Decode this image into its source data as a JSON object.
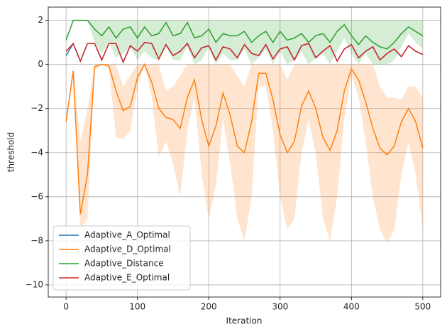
{
  "chart_data": {
    "type": "line",
    "x_label": "Iteration",
    "y_label": "threshold",
    "x": [
      0,
      10,
      20,
      30,
      40,
      50,
      60,
      70,
      80,
      90,
      100,
      110,
      120,
      130,
      140,
      150,
      160,
      170,
      180,
      190,
      200,
      210,
      220,
      230,
      240,
      250,
      260,
      270,
      280,
      290,
      300,
      310,
      320,
      330,
      340,
      350,
      360,
      370,
      380,
      390,
      400,
      410,
      420,
      430,
      440,
      450,
      460,
      470,
      480,
      490,
      500
    ],
    "xlim": [
      -25,
      525
    ],
    "ylim": [
      -10.55,
      2.6
    ],
    "xticks": [
      0,
      100,
      200,
      300,
      400,
      500
    ],
    "yticks": [
      {
        "value": -10,
        "label": "−10"
      },
      {
        "value": -8,
        "label": "−8"
      },
      {
        "value": -6,
        "label": "−6"
      },
      {
        "value": -4,
        "label": "−4"
      },
      {
        "value": -2,
        "label": "−2"
      },
      0,
      2
    ],
    "grid": true,
    "legend_position": "lower left",
    "series": [
      {
        "name": "Adaptive_A_Optimal",
        "color": "#1f77b4",
        "values": [
          0.4,
          0.95,
          0.15,
          0.95,
          0.95,
          0.2,
          0.95,
          0.95,
          0.1,
          0.85,
          0.6,
          1.0,
          0.95,
          0.25,
          0.9,
          0.4,
          0.6,
          0.95,
          0.3,
          0.75,
          0.85,
          0.2,
          0.8,
          0.7,
          0.3,
          0.9,
          0.5,
          0.4,
          0.9,
          0.25,
          0.7,
          0.8,
          0.2,
          0.85,
          0.95,
          0.3,
          0.6,
          0.85,
          0.15,
          0.7,
          0.9,
          0.3,
          0.6,
          0.8,
          0.2,
          0.5,
          0.7,
          0.35,
          0.85,
          0.6,
          0.45
        ]
      },
      {
        "name": "Adaptive_D_Optimal",
        "color": "#ff7f0e",
        "values": [
          -2.6,
          -0.3,
          -6.8,
          -5.0,
          -0.1,
          0,
          -0.05,
          -1.2,
          -2.1,
          -1.9,
          -0.6,
          0,
          -0.8,
          -2.0,
          -2.4,
          -2.5,
          -2.9,
          -1.5,
          -0.7,
          -2.5,
          -3.7,
          -2.8,
          -1.3,
          -2.3,
          -3.7,
          -4.0,
          -2.6,
          -0.4,
          -0.4,
          -1.6,
          -3.2,
          -4.0,
          -3.5,
          -1.9,
          -1.2,
          -2.0,
          -3.3,
          -3.9,
          -3.0,
          -1.2,
          -0.2,
          -0.7,
          -1.7,
          -2.9,
          -3.8,
          -4.1,
          -3.7,
          -2.6,
          -2.0,
          -2.6,
          -3.8
        ],
        "lower": [
          -2.6,
          -0.5,
          -7.5,
          -7.0,
          -0.3,
          0,
          -0.2,
          -3.3,
          -3.4,
          -3.0,
          -1.0,
          0,
          -1.5,
          -4.2,
          -3.5,
          -4.5,
          -6.0,
          -3.0,
          -1.5,
          -5.0,
          -7.0,
          -5.5,
          -2.5,
          -4.5,
          -7.0,
          -8.0,
          -6.0,
          -1.0,
          -1.0,
          -3.0,
          -6.0,
          -7.5,
          -7.0,
          -4.0,
          -2.5,
          -4.0,
          -7.0,
          -8.0,
          -6.0,
          -2.5,
          -0.5,
          -1.5,
          -3.5,
          -6.0,
          -7.5,
          -8.1,
          -7.5,
          -5.0,
          -3.5,
          -5.0,
          -7.5
        ],
        "upper": [
          -2.6,
          0,
          -3.5,
          -2.0,
          0,
          0,
          0,
          0,
          -1.0,
          -0.5,
          0,
          0,
          0,
          0,
          -1.2,
          -1.0,
          -0.5,
          0,
          0,
          0,
          0,
          0,
          0,
          0,
          -0.5,
          -1.0,
          0,
          0,
          0,
          0,
          0,
          -0.7,
          0,
          0,
          0,
          0,
          0,
          0,
          0,
          0,
          0,
          0,
          0,
          0,
          -1.0,
          -1.5,
          -1.5,
          -1.6,
          -1.0,
          -1.0,
          -1.5
        ]
      },
      {
        "name": "Adaptive_Distance",
        "color": "#2ca02c",
        "values": [
          1.1,
          2,
          2,
          2,
          1.6,
          1.3,
          1.7,
          1.2,
          1.6,
          1.7,
          1.2,
          1.7,
          1.3,
          1.4,
          1.9,
          1.3,
          1.4,
          1.9,
          1.2,
          1.3,
          1.6,
          1.0,
          1.4,
          1.3,
          1.3,
          1.5,
          1.0,
          1.3,
          1.5,
          1.0,
          1.5,
          1.1,
          1.2,
          1.4,
          1.0,
          1.3,
          1.4,
          1.0,
          1.5,
          1.8,
          1.3,
          0.9,
          1.3,
          1.0,
          0.8,
          0.7,
          1.0,
          1.4,
          1.7,
          1.5,
          1.3
        ],
        "lower": [
          1.1,
          2,
          2,
          2,
          1.0,
          0.5,
          1.0,
          0.3,
          0.5,
          0.8,
          0.2,
          0.6,
          0.3,
          0.2,
          0.8,
          0.2,
          0.2,
          0.8,
          0.0,
          0.2,
          0.8,
          0.0,
          0.5,
          0.2,
          0.2,
          0.7,
          0.0,
          0.3,
          0.7,
          0.0,
          0.6,
          0.0,
          0.2,
          0.6,
          0.0,
          0.3,
          0.5,
          0.0,
          0.6,
          1.2,
          0.5,
          0.0,
          0.5,
          0.0,
          0.0,
          0.0,
          0.2,
          0.8,
          1.4,
          1.0,
          0.7
        ],
        "upper": [
          1.1,
          2,
          2,
          2,
          2,
          2,
          2,
          2,
          2,
          2,
          2,
          2,
          2,
          2,
          2,
          2,
          2,
          2,
          2,
          2,
          2,
          2,
          2,
          2,
          2,
          2,
          2,
          2,
          2,
          2,
          2,
          2,
          2,
          2,
          2,
          2,
          2,
          2,
          2,
          2,
          2,
          2,
          2,
          2,
          2,
          2,
          2,
          2,
          2,
          2,
          2
        ]
      },
      {
        "name": "Adaptive_E_Optimal",
        "color": "#d62728",
        "values": [
          0.6,
          0.95,
          0.15,
          0.95,
          0.95,
          0.2,
          0.95,
          0.95,
          0.1,
          0.85,
          0.6,
          1.0,
          0.95,
          0.25,
          0.9,
          0.4,
          0.6,
          0.95,
          0.3,
          0.75,
          0.85,
          0.2,
          0.8,
          0.7,
          0.3,
          0.9,
          0.5,
          0.4,
          0.9,
          0.25,
          0.7,
          0.8,
          0.2,
          0.85,
          0.95,
          0.3,
          0.6,
          0.85,
          0.15,
          0.7,
          0.9,
          0.3,
          0.6,
          0.8,
          0.2,
          0.5,
          0.7,
          0.35,
          0.85,
          0.6,
          0.45
        ]
      }
    ]
  }
}
